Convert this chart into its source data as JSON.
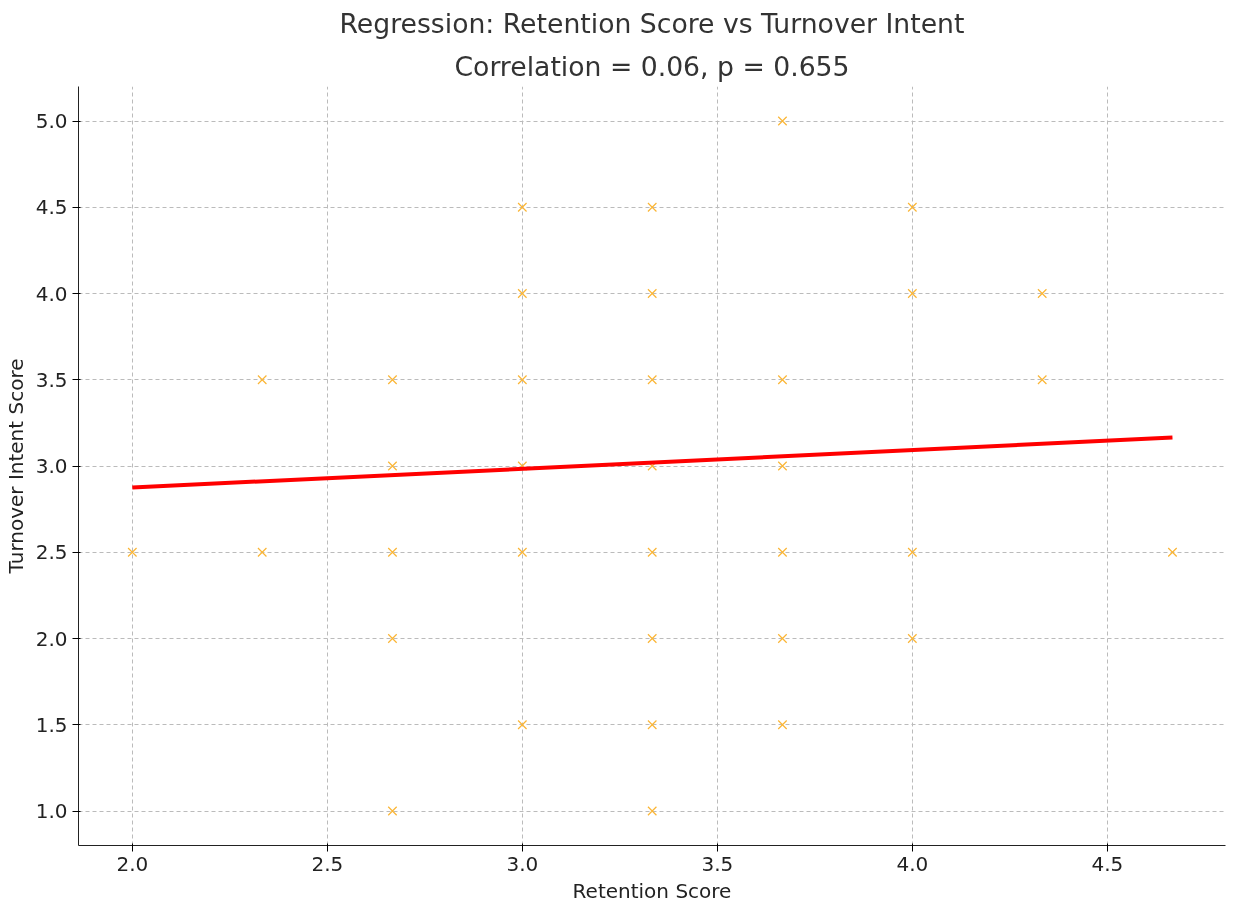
{
  "chart_data": {
    "type": "scatter",
    "title": "Regression: Retention Score vs Turnover Intent",
    "subtitle": "Correlation = 0.06, p = 0.655",
    "xlabel": "Retention Score",
    "ylabel": "Turnover Intent Score",
    "xlim": [
      1.862,
      4.803
    ],
    "ylim": [
      0.8,
      5.2
    ],
    "xticks": [
      {
        "value": 2,
        "label": "2.0"
      },
      2.5,
      {
        "value": 3,
        "label": "3.0"
      },
      3.5,
      {
        "value": 4,
        "label": "4.0"
      },
      4.5
    ],
    "yticks": [
      {
        "value": 1,
        "label": "1.0"
      },
      1.5,
      {
        "value": 2,
        "label": "2.0"
      },
      2.5,
      {
        "value": 3,
        "label": "3.0"
      },
      3.5,
      {
        "value": 4,
        "label": "4.0"
      },
      4.5,
      {
        "value": 5,
        "label": "5.0"
      }
    ],
    "grid": true,
    "series": [
      {
        "color": "#fbb534",
        "marker": "cross",
        "x": [
          2,
          2.333,
          2.333,
          2.667,
          2.667,
          2.667,
          2.667,
          2.667,
          3,
          3,
          3,
          3,
          3,
          3,
          3.333,
          3.333,
          3.333,
          3.333,
          3.333,
          3.333,
          3.333,
          3.333,
          3.667,
          3.667,
          3.667,
          3.667,
          3.667,
          3.667,
          4,
          4,
          4,
          4,
          4.333,
          4.333,
          4.667
        ],
        "values": [
          2.5,
          3.5,
          2.5,
          3.5,
          3.0,
          2.5,
          2.0,
          1.0,
          4.5,
          4.0,
          3.5,
          3.0,
          2.5,
          1.5,
          4.5,
          4.0,
          3.5,
          3.0,
          2.5,
          2.0,
          1.5,
          1.0,
          5.0,
          3.5,
          3.0,
          2.5,
          2.0,
          1.5,
          4.5,
          4.0,
          2.5,
          2.0,
          4.0,
          3.5,
          2.5
        ]
      },
      {
        "type": "line",
        "color": "#ff0000",
        "line_style": "solid",
        "x": [
          2,
          4.667
        ],
        "values": [
          2.875,
          3.165
        ]
      }
    ]
  }
}
